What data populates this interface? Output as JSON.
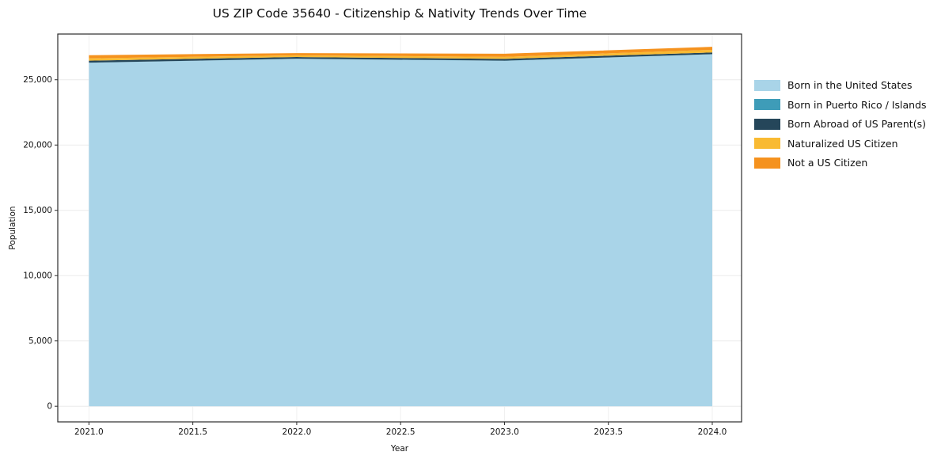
{
  "title": "US ZIP Code 35640 - Citizenship & Nativity Trends Over Time",
  "chart_data": {
    "type": "area",
    "stacked": true,
    "title": "US ZIP Code 35640 - Citizenship & Nativity Trends Over Time",
    "xlabel": "Year",
    "ylabel": "Population",
    "x": [
      2021,
      2022,
      2023,
      2024
    ],
    "series": [
      {
        "name": "Born in the United States",
        "color": "#a9d4e8",
        "values": [
          26300,
          26600,
          26450,
          26950
        ]
      },
      {
        "name": "Born in Puerto Rico / Islands",
        "color": "#3e9cb8",
        "values": [
          10,
          10,
          10,
          10
        ]
      },
      {
        "name": "Born Abroad of US Parent(s)",
        "color": "#25465a",
        "values": [
          150,
          130,
          140,
          130
        ]
      },
      {
        "name": "Naturalized US Citizen",
        "color": "#f9ba32",
        "values": [
          180,
          130,
          150,
          200
        ]
      },
      {
        "name": "Not a US Citizen",
        "color": "#f5921e",
        "values": [
          240,
          170,
          240,
          230
        ]
      }
    ],
    "xlim": [
      2020.85,
      2024.141
    ],
    "ylim": [
      -1200,
      28500
    ],
    "x_ticks": [
      2021.0,
      2021.5,
      2022.0,
      2022.5,
      2023.0,
      2023.5,
      2024.0
    ],
    "x_tick_labels": [
      "2021.0",
      "2021.5",
      "2022.0",
      "2022.5",
      "2023.0",
      "2023.5",
      "2024.0"
    ],
    "y_ticks": [
      0,
      5000,
      10000,
      15000,
      20000,
      25000
    ],
    "y_tick_labels": [
      "0",
      "5,000",
      "10,000",
      "15,000",
      "20,000",
      "25,000"
    ],
    "grid": true,
    "legend_position": "right"
  }
}
